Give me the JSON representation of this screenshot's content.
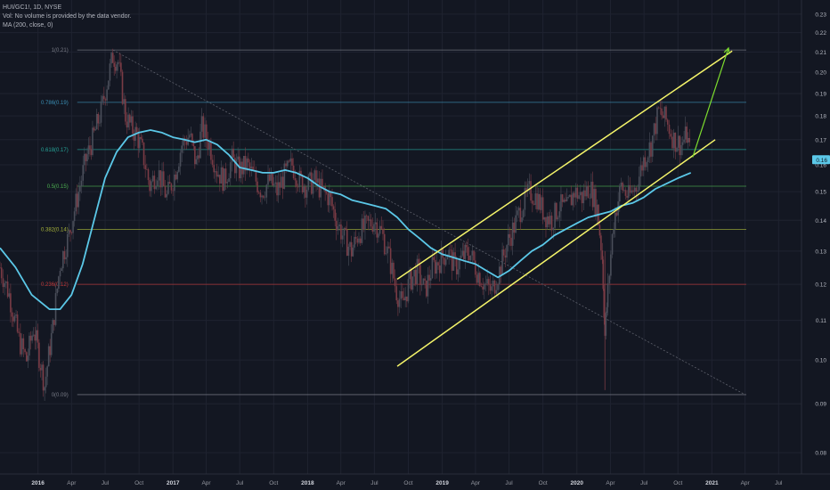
{
  "legend": {
    "symbol_line": "HUI/GC1!, 1D, NYSE",
    "volume_note": "Vol: No volume is provided by the data vendor.",
    "ma_label": "MA (200, close, 0)"
  },
  "colors": {
    "background": "#131722",
    "grid": "#1f2330",
    "candle_up": "#4a4e5a",
    "candle_down": "#7a3b45",
    "ma": "#5bc8e8",
    "channel": "#f5f56a",
    "arrow": "#7ddc2e",
    "price_badge": "#5bc8e8",
    "fib_0": "#787b86",
    "fib_236": "#c43a3a",
    "fib_382": "#a8b53a",
    "fib_5": "#4caf50",
    "fib_618": "#26a69a",
    "fib_786": "#3a8fb5",
    "fib_1": "#787b86"
  },
  "chart_data": {
    "type": "line",
    "symbol": "HUI/GC1!",
    "interval": "1D",
    "exchange": "NYSE",
    "xlim": [
      "2015-09-20",
      "2021-09-01"
    ],
    "ylim": [
      0.076,
      0.238
    ],
    "y_scale": "log",
    "grid": true,
    "x_ticks": [
      {
        "date": "2016-01-01",
        "label": "2016"
      },
      {
        "date": "2016-04-01",
        "label": "Apr"
      },
      {
        "date": "2016-07-01",
        "label": "Jul"
      },
      {
        "date": "2016-10-01",
        "label": "Oct"
      },
      {
        "date": "2017-01-01",
        "label": "2017"
      },
      {
        "date": "2017-04-01",
        "label": "Apr"
      },
      {
        "date": "2017-07-01",
        "label": "Jul"
      },
      {
        "date": "2017-10-01",
        "label": "Oct"
      },
      {
        "date": "2018-01-01",
        "label": "2018"
      },
      {
        "date": "2018-04-01",
        "label": "Apr"
      },
      {
        "date": "2018-07-01",
        "label": "Jul"
      },
      {
        "date": "2018-10-01",
        "label": "Oct"
      },
      {
        "date": "2019-01-01",
        "label": "2019"
      },
      {
        "date": "2019-04-01",
        "label": "Apr"
      },
      {
        "date": "2019-07-01",
        "label": "Jul"
      },
      {
        "date": "2019-10-01",
        "label": "Oct"
      },
      {
        "date": "2020-01-01",
        "label": "2020"
      },
      {
        "date": "2020-04-01",
        "label": "Apr"
      },
      {
        "date": "2020-07-01",
        "label": "Jul"
      },
      {
        "date": "2020-10-01",
        "label": "Oct"
      },
      {
        "date": "2021-01-01",
        "label": "2021"
      },
      {
        "date": "2021-04-01",
        "label": "Apr"
      },
      {
        "date": "2021-07-01",
        "label": "Jul"
      }
    ],
    "y_ticks": [
      {
        "value": 0.23,
        "label": "0.23"
      },
      {
        "value": 0.22,
        "label": "0.22"
      },
      {
        "value": 0.21,
        "label": "0.21"
      },
      {
        "value": 0.2,
        "label": "0.20"
      },
      {
        "value": 0.19,
        "label": "0.19"
      },
      {
        "value": 0.18,
        "label": "0.18"
      },
      {
        "value": 0.17,
        "label": "0.17"
      },
      {
        "value": 0.16,
        "label": "0.16"
      },
      {
        "value": 0.15,
        "label": "0.15"
      },
      {
        "value": 0.14,
        "label": "0.14"
      },
      {
        "value": 0.13,
        "label": "0.13"
      },
      {
        "value": 0.12,
        "label": "0.12"
      },
      {
        "value": 0.11,
        "label": "0.11"
      },
      {
        "value": 0.1,
        "label": "0.10"
      },
      {
        "value": 0.09,
        "label": "0.09"
      },
      {
        "value": 0.08,
        "label": "0.08"
      }
    ],
    "last_price": {
      "value": 0.162,
      "label": "0.16"
    },
    "price_series": {
      "x": [
        "2015-09-20",
        "2015-10-15",
        "2015-11-10",
        "2015-12-01",
        "2015-12-20",
        "2016-01-19",
        "2016-02-10",
        "2016-03-01",
        "2016-03-25",
        "2016-04-20",
        "2016-05-10",
        "2016-05-28",
        "2016-06-20",
        "2016-07-10",
        "2016-07-22",
        "2016-08-05",
        "2016-08-25",
        "2016-09-10",
        "2016-09-25",
        "2016-10-10",
        "2016-10-30",
        "2016-11-20",
        "2016-12-15",
        "2017-01-05",
        "2017-01-25",
        "2017-02-15",
        "2017-03-05",
        "2017-03-20",
        "2017-04-10",
        "2017-04-30",
        "2017-05-20",
        "2017-06-10",
        "2017-06-30",
        "2017-07-20",
        "2017-08-10",
        "2017-08-30",
        "2017-09-20",
        "2017-10-10",
        "2017-10-30",
        "2017-11-20",
        "2017-12-10",
        "2017-12-30",
        "2018-01-20",
        "2018-02-10",
        "2018-03-01",
        "2018-03-20",
        "2018-04-10",
        "2018-04-30",
        "2018-05-20",
        "2018-06-10",
        "2018-06-30",
        "2018-07-20",
        "2018-08-10",
        "2018-08-30",
        "2018-09-15",
        "2018-10-05",
        "2018-10-25",
        "2018-11-15",
        "2018-12-05",
        "2018-12-25",
        "2019-01-15",
        "2019-02-05",
        "2019-02-25",
        "2019-03-15",
        "2019-04-05",
        "2019-04-25",
        "2019-05-15",
        "2019-06-05",
        "2019-06-25",
        "2019-07-15",
        "2019-08-05",
        "2019-08-25",
        "2019-09-15",
        "2019-10-05",
        "2019-10-25",
        "2019-11-15",
        "2019-12-05",
        "2019-12-25",
        "2020-01-15",
        "2020-02-05",
        "2020-02-25",
        "2020-03-10",
        "2020-03-17",
        "2020-03-25",
        "2020-04-10",
        "2020-04-30",
        "2020-05-20",
        "2020-06-10",
        "2020-06-30",
        "2020-07-20",
        "2020-08-10",
        "2020-08-30",
        "2020-09-20",
        "2020-10-10",
        "2020-10-25",
        "2020-11-05"
      ],
      "values": [
        0.125,
        0.117,
        0.105,
        0.1,
        0.108,
        0.094,
        0.108,
        0.126,
        0.135,
        0.15,
        0.162,
        0.17,
        0.182,
        0.198,
        0.208,
        0.205,
        0.18,
        0.175,
        0.172,
        0.165,
        0.152,
        0.158,
        0.148,
        0.156,
        0.168,
        0.172,
        0.16,
        0.175,
        0.168,
        0.158,
        0.154,
        0.162,
        0.158,
        0.16,
        0.155,
        0.15,
        0.154,
        0.15,
        0.156,
        0.16,
        0.154,
        0.152,
        0.154,
        0.15,
        0.148,
        0.14,
        0.134,
        0.13,
        0.136,
        0.138,
        0.14,
        0.136,
        0.128,
        0.118,
        0.114,
        0.121,
        0.124,
        0.118,
        0.125,
        0.127,
        0.13,
        0.125,
        0.128,
        0.13,
        0.124,
        0.12,
        0.118,
        0.124,
        0.132,
        0.138,
        0.145,
        0.15,
        0.148,
        0.142,
        0.14,
        0.145,
        0.144,
        0.15,
        0.148,
        0.152,
        0.144,
        0.128,
        0.106,
        0.118,
        0.14,
        0.152,
        0.148,
        0.152,
        0.162,
        0.168,
        0.182,
        0.178,
        0.17,
        0.168,
        0.172,
        0.162
      ]
    },
    "moving_average": {
      "name": "MA (200, close, 0)",
      "x": [
        "2015-09-20",
        "2015-11-01",
        "2015-12-15",
        "2016-02-01",
        "2016-03-01",
        "2016-04-01",
        "2016-05-01",
        "2016-06-01",
        "2016-07-01",
        "2016-08-01",
        "2016-09-01",
        "2016-10-01",
        "2016-11-01",
        "2016-12-01",
        "2017-01-01",
        "2017-02-01",
        "2017-03-01",
        "2017-04-01",
        "2017-05-01",
        "2017-06-01",
        "2017-07-01",
        "2017-08-01",
        "2017-09-01",
        "2017-10-01",
        "2017-11-01",
        "2017-12-01",
        "2018-01-01",
        "2018-02-01",
        "2018-03-01",
        "2018-04-01",
        "2018-05-01",
        "2018-06-01",
        "2018-07-01",
        "2018-08-01",
        "2018-09-01",
        "2018-10-01",
        "2018-11-01",
        "2018-12-01",
        "2019-01-01",
        "2019-02-01",
        "2019-03-01",
        "2019-04-01",
        "2019-05-01",
        "2019-06-01",
        "2019-07-01",
        "2019-08-01",
        "2019-09-01",
        "2019-10-01",
        "2019-11-01",
        "2019-12-01",
        "2020-01-01",
        "2020-02-01",
        "2020-03-01",
        "2020-04-01",
        "2020-05-01",
        "2020-06-01",
        "2020-07-01",
        "2020-08-01",
        "2020-09-01",
        "2020-10-01",
        "2020-11-05"
      ],
      "values": [
        0.131,
        0.125,
        0.117,
        0.113,
        0.113,
        0.117,
        0.126,
        0.14,
        0.155,
        0.165,
        0.171,
        0.173,
        0.174,
        0.173,
        0.171,
        0.17,
        0.169,
        0.17,
        0.168,
        0.164,
        0.159,
        0.158,
        0.157,
        0.157,
        0.158,
        0.157,
        0.155,
        0.152,
        0.15,
        0.149,
        0.147,
        0.146,
        0.145,
        0.144,
        0.141,
        0.137,
        0.134,
        0.131,
        0.129,
        0.128,
        0.127,
        0.126,
        0.124,
        0.122,
        0.124,
        0.127,
        0.13,
        0.132,
        0.135,
        0.137,
        0.139,
        0.141,
        0.142,
        0.143,
        0.145,
        0.146,
        0.148,
        0.151,
        0.153,
        0.155,
        0.157
      ]
    },
    "fibonacci": {
      "start": "2016-07-22",
      "end": "2021-04-01",
      "levels": [
        {
          "ratio": 0,
          "value": 0.092,
          "label": "0(0.09)",
          "color_key": "fib_0"
        },
        {
          "ratio": 0.236,
          "value": 0.12,
          "label": "0.236(0.12)",
          "color_key": "fib_236"
        },
        {
          "ratio": 0.382,
          "value": 0.137,
          "label": "0.382(0.14)",
          "color_key": "fib_382"
        },
        {
          "ratio": 0.5,
          "value": 0.152,
          "label": "0.5(0.15)",
          "color_key": "fib_5"
        },
        {
          "ratio": 0.618,
          "value": 0.166,
          "label": "0.618(0.17)",
          "color_key": "fib_618"
        },
        {
          "ratio": 0.786,
          "value": 0.186,
          "label": "0.786(0.19)",
          "color_key": "fib_786"
        },
        {
          "ratio": 1,
          "value": 0.211,
          "label": "1(0.21)",
          "color_key": "fib_1"
        }
      ],
      "diagonal": {
        "from": [
          "2016-07-22",
          0.211
        ],
        "to": [
          "2021-04-01",
          0.092
        ]
      }
    },
    "channel": {
      "upper": {
        "from": [
          "2018-09-01",
          0.1215
        ],
        "to": [
          "2021-02-25",
          0.2105
        ]
      },
      "lower": {
        "from": [
          "2018-09-01",
          0.0985
        ],
        "to": [
          "2021-01-10",
          0.17
        ]
      }
    },
    "arrow": {
      "from": [
        "2020-11-10",
        0.163
      ],
      "to": [
        "2021-02-15",
        0.212
      ]
    }
  }
}
